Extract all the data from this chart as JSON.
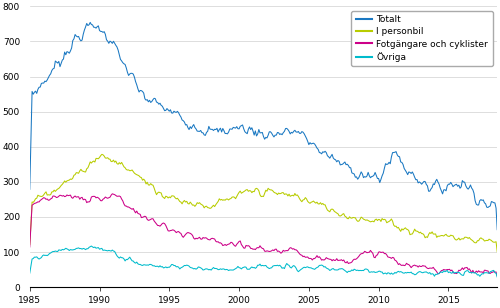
{
  "title": "",
  "xlabel": "",
  "ylabel": "",
  "xlim": [
    1985,
    2018.5
  ],
  "ylim": [
    0,
    800
  ],
  "yticks": [
    0,
    100,
    200,
    300,
    400,
    500,
    600,
    700,
    800
  ],
  "xticks": [
    1985,
    1990,
    1995,
    2000,
    2005,
    2010,
    2015
  ],
  "legend_labels": [
    "Totalt",
    "I personbil",
    "Fotgängare och cyklister",
    "Övriga"
  ],
  "line_colors": [
    "#1a78c2",
    "#b8cc00",
    "#cc0088",
    "#00bbcc"
  ],
  "background_color": "#ffffff",
  "grid_color": "#d0d0d0",
  "figsize": [
    5.0,
    3.08
  ],
  "dpi": 100
}
